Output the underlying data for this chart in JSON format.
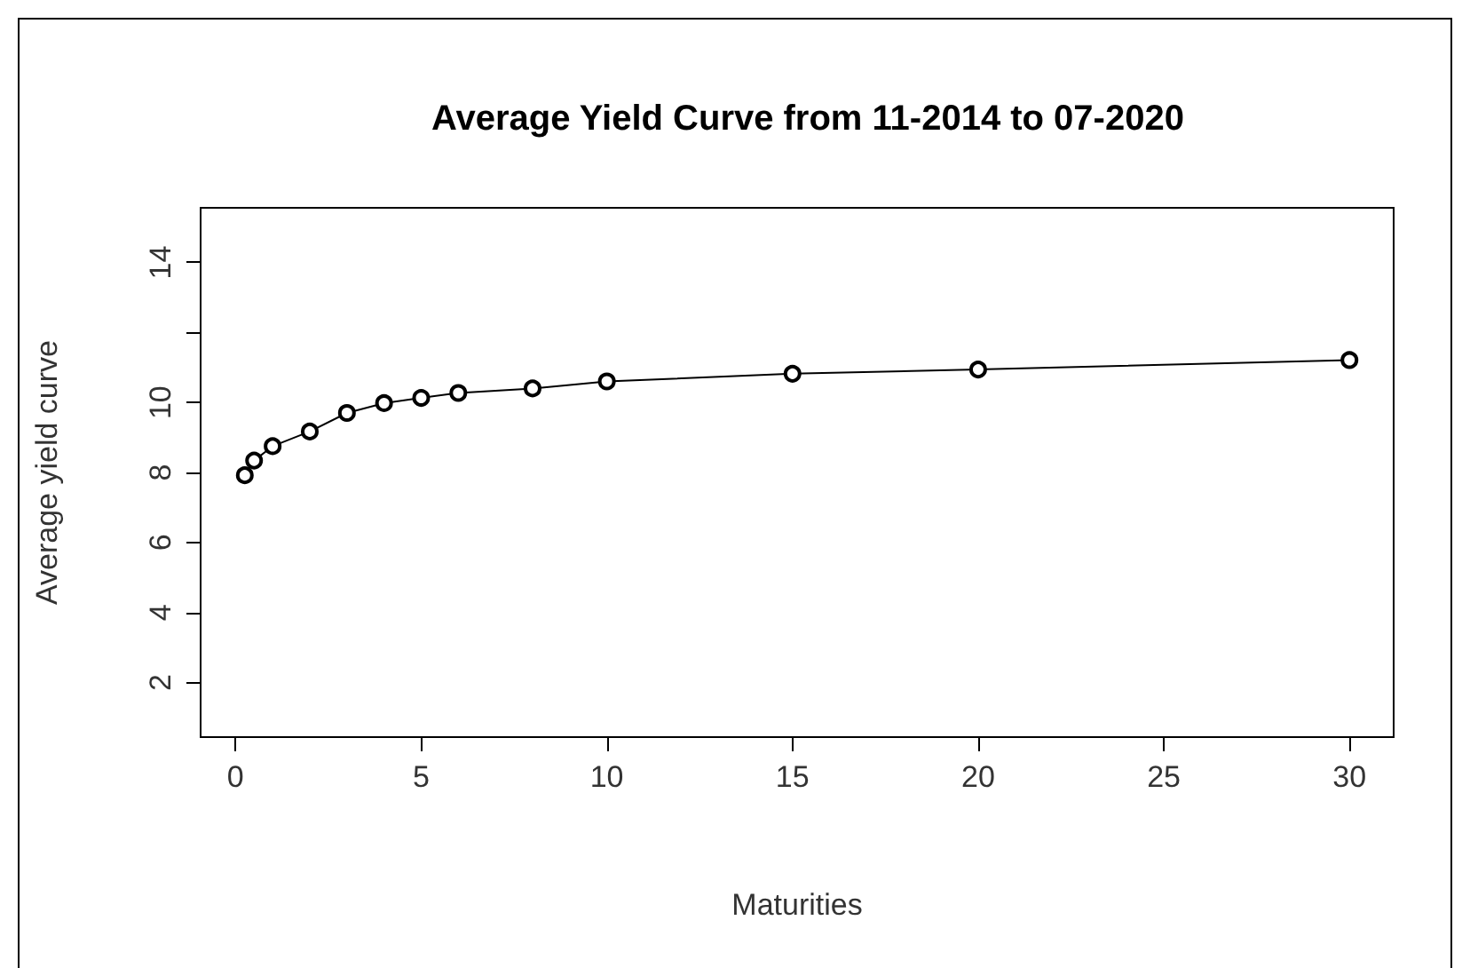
{
  "chart_data": {
    "type": "line",
    "title": "Average Yield Curve from 11-2014 to 07-2020",
    "xlabel": "Maturities",
    "ylabel": "Average yield curve",
    "x": [
      0.25,
      0.5,
      1,
      2,
      3,
      4,
      5,
      6,
      8,
      10,
      15,
      20,
      30
    ],
    "series": [
      {
        "color": "#000000",
        "values": [
          7.92,
          8.34,
          8.75,
          9.17,
          9.7,
          9.98,
          10.13,
          10.27,
          10.4,
          10.6,
          10.82,
          10.94,
          11.21
        ]
      }
    ],
    "xlim": [
      -0.94,
      31.19
    ],
    "xticks": [
      0,
      5,
      10,
      15,
      20,
      25,
      30
    ],
    "ylim": [
      0.44,
      15.56
    ],
    "yticks": [
      2,
      4,
      6,
      8,
      10,
      {
        "value": 12,
        "label": null
      },
      14
    ],
    "grid": false,
    "marker": "circle",
    "line_style": "solid"
  }
}
